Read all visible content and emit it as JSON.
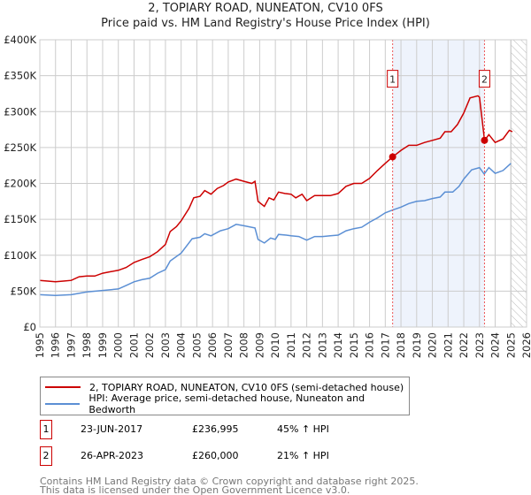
{
  "chart_data": {
    "type": "line",
    "title": "2, TOPIARY ROAD, NUNEATON, CV10 0FS",
    "subtitle": "Price paid vs. HM Land Registry's House Price Index (HPI)",
    "xlim": [
      1995,
      2026
    ],
    "ylim": [
      0,
      400000
    ],
    "x_ticks": [
      "1995",
      "1996",
      "1997",
      "1998",
      "1999",
      "2000",
      "2001",
      "2002",
      "2003",
      "2004",
      "2005",
      "2006",
      "2007",
      "2008",
      "2009",
      "2010",
      "2011",
      "2012",
      "2013",
      "2014",
      "2015",
      "2016",
      "2017",
      "2018",
      "2019",
      "2020",
      "2021",
      "2022",
      "2023",
      "2024",
      "2025",
      "2026"
    ],
    "y_ticks": [
      {
        "v": 0,
        "label": "£0"
      },
      {
        "v": 50000,
        "label": "£50K"
      },
      {
        "v": 100000,
        "label": "£100K"
      },
      {
        "v": 150000,
        "label": "£150K"
      },
      {
        "v": 200000,
        "label": "£200K"
      },
      {
        "v": 250000,
        "label": "£250K"
      },
      {
        "v": 300000,
        "label": "£300K"
      },
      {
        "v": 350000,
        "label": "£350K"
      },
      {
        "v": 400000,
        "label": "£400K"
      }
    ],
    "grid": true,
    "shaded_range": [
      2017.47,
      2023.32
    ],
    "forecast_hatch_from": 2025.0,
    "series": [
      {
        "name": "2, TOPIARY ROAD, NUNEATON, CV10 0FS (semi-detached house)",
        "color": "#cc0000",
        "x": [
          1995,
          1996,
          1996.5,
          1997,
          1997.5,
          1998,
          1998.5,
          1999,
          1999.5,
          2000,
          2000.5,
          2001,
          2001.5,
          2002,
          2002.5,
          2003,
          2003.3,
          2003.7,
          2004,
          2004.5,
          2004.8,
          2005.2,
          2005.5,
          2005.9,
          2006.3,
          2006.7,
          2007,
          2007.5,
          2008,
          2008.5,
          2008.7,
          2008.9,
          2009.3,
          2009.6,
          2009.9,
          2010.2,
          2010.6,
          2011,
          2011.3,
          2011.7,
          2012,
          2012.5,
          2013,
          2013.5,
          2014,
          2014.5,
          2015,
          2015.5,
          2016,
          2016.5,
          2017,
          2017.47,
          2018,
          2018.5,
          2019,
          2019.5,
          2020,
          2020.5,
          2020.8,
          2021.2,
          2021.6,
          2022,
          2022.4,
          2022.9,
          2023.0,
          2023.32,
          2023.6,
          2024,
          2024.5,
          2024.9,
          2025.1
        ],
        "y": [
          65000,
          63000,
          64000,
          65000,
          70000,
          71000,
          71000,
          75000,
          77000,
          79000,
          83000,
          90000,
          94000,
          98000,
          105000,
          115000,
          133000,
          140000,
          148000,
          165000,
          180000,
          182000,
          190000,
          185000,
          193000,
          197000,
          202000,
          206000,
          203000,
          200000,
          203000,
          175000,
          168000,
          180000,
          177000,
          188000,
          186000,
          185000,
          180000,
          185000,
          176000,
          183000,
          183000,
          183000,
          186000,
          196000,
          200000,
          200000,
          207000,
          218000,
          228000,
          236995,
          246000,
          253000,
          253000,
          257000,
          260000,
          263000,
          272000,
          272000,
          282000,
          298000,
          319000,
          322000,
          320000,
          260000,
          268000,
          257000,
          262000,
          274000,
          272000
        ]
      },
      {
        "name": "HPI: Average price, semi-detached house, Nuneaton and Bedworth",
        "color": "#5b8fd4",
        "x": [
          1995,
          1996,
          1997,
          1998,
          1999,
          2000,
          2000.5,
          2001,
          2001.5,
          2002,
          2002.5,
          2003,
          2003.3,
          2004,
          2004.7,
          2005.2,
          2005.5,
          2005.9,
          2006.5,
          2007,
          2007.5,
          2008,
          2008.7,
          2008.9,
          2009.3,
          2009.7,
          2010,
          2010.2,
          2010.7,
          2011,
          2011.5,
          2012,
          2012.5,
          2013,
          2013.5,
          2014,
          2014.5,
          2015,
          2015.5,
          2016,
          2016.5,
          2017,
          2017.47,
          2018,
          2018.5,
          2019,
          2019.5,
          2020,
          2020.5,
          2020.8,
          2021.3,
          2021.7,
          2022,
          2022.5,
          2023,
          2023.3,
          2023.6,
          2024,
          2024.5,
          2025
        ],
        "y": [
          45000,
          44000,
          45000,
          49000,
          51000,
          53000,
          58000,
          63000,
          66000,
          68000,
          75000,
          80000,
          92000,
          103000,
          123000,
          125000,
          130000,
          127000,
          134000,
          137000,
          143000,
          141000,
          138000,
          122000,
          117000,
          124000,
          122000,
          129000,
          128000,
          127000,
          126000,
          121000,
          126000,
          126000,
          127000,
          128000,
          134000,
          137000,
          139000,
          146000,
          152000,
          159000,
          163000,
          167000,
          172000,
          175000,
          176000,
          179000,
          181000,
          188000,
          188000,
          196000,
          206000,
          219000,
          222000,
          213000,
          222000,
          214000,
          218000,
          228000
        ]
      }
    ],
    "annotations": [
      {
        "label": "1",
        "x": 2017.47,
        "y": 236995
      },
      {
        "label": "2",
        "x": 2023.32,
        "y": 260000
      }
    ]
  },
  "legend": {
    "items": [
      "2, TOPIARY ROAD, NUNEATON, CV10 0FS (semi-detached house)",
      "HPI: Average price, semi-detached house, Nuneaton and Bedworth"
    ]
  },
  "sales": [
    {
      "num": "1",
      "date": "23-JUN-2017",
      "price": "£236,995",
      "hpi": "45% ↑ HPI"
    },
    {
      "num": "2",
      "date": "26-APR-2023",
      "price": "£260,000",
      "hpi": "21% ↑ HPI"
    }
  ],
  "footer": {
    "line1": "Contains HM Land Registry data © Crown copyright and database right 2025.",
    "line2": "This data is licensed under the Open Government Licence v3.0."
  },
  "colors": {
    "red": "#cc0000",
    "blue": "#5b8fd4",
    "shade": "#eef3fc"
  }
}
